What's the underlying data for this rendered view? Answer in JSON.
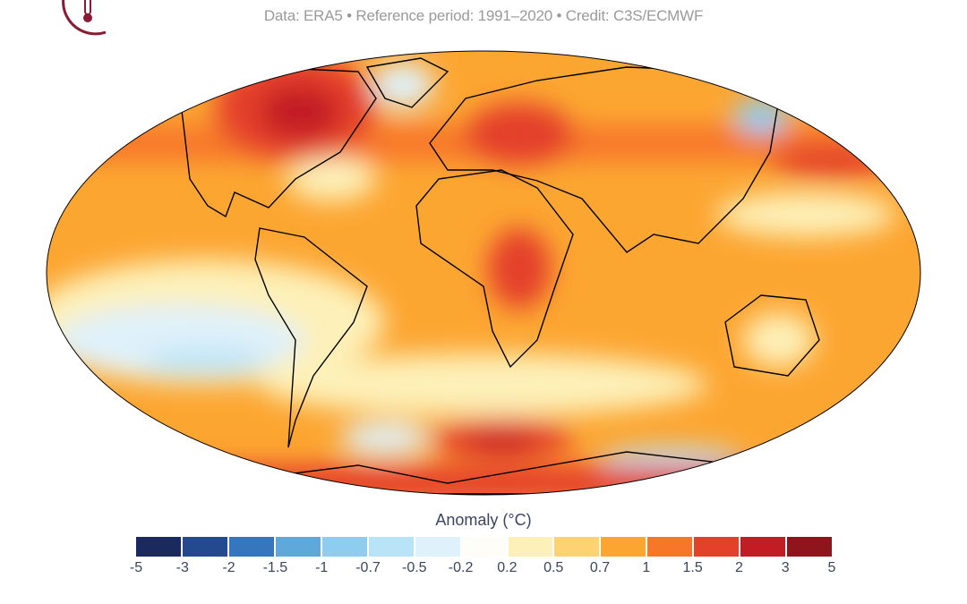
{
  "header": {
    "subtitle": "Data: ERA5 • Reference period: 1991–2020 • Credit: C3S/ECMWF",
    "logo_icon": "thermometer-circle-logo",
    "logo_color": "#8b1a35"
  },
  "map": {
    "projection": "robinson",
    "variable": "surface air temperature anomaly",
    "coastline_color": "#000000"
  },
  "legend": {
    "title": "Anomaly (°C)",
    "ticks": [
      "-5",
      "-3",
      "-2",
      "-1.5",
      "-1",
      "-0.7",
      "-0.5",
      "-0.2",
      "0.2",
      "0.5",
      "0.7",
      "1",
      "1.5",
      "2",
      "3",
      "5"
    ],
    "colors": [
      "#1b2a5e",
      "#234a8f",
      "#3576bd",
      "#5ea8da",
      "#8fcdf0",
      "#b9e3f7",
      "#dff1fa",
      "#fffdf8",
      "#fdf0b8",
      "#fdd272",
      "#fca632",
      "#f7772a",
      "#e4402a",
      "#c21c25",
      "#8e151b"
    ]
  }
}
